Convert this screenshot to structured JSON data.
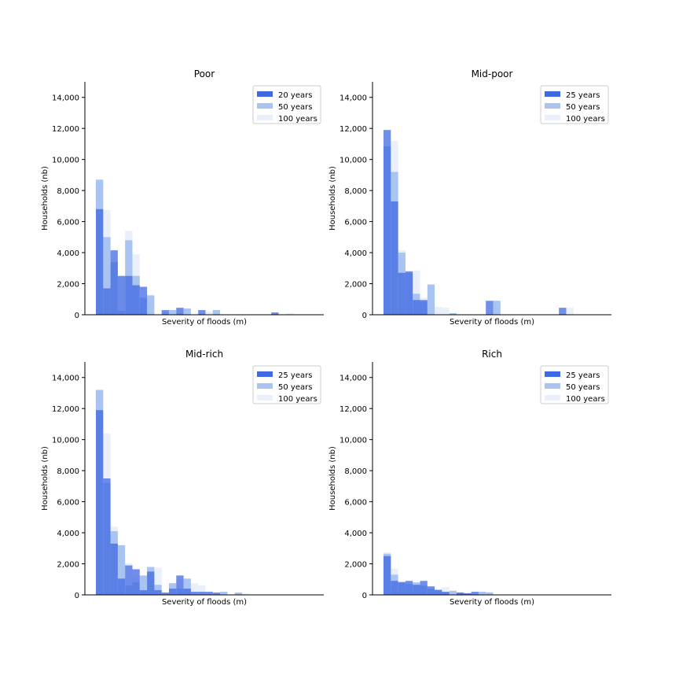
{
  "colors": {
    "s1": "#4169e1",
    "s2": "#a9c4f0",
    "s3": "#e6edf9"
  },
  "chart_data": [
    {
      "type": "bar",
      "title": "Poor",
      "xlabel": "Severity of floods (m)",
      "ylabel": "Households (nb)",
      "ylim": [
        0,
        15000
      ],
      "yticks": [
        "0",
        "2,000",
        "4,000",
        "6,000",
        "8,000",
        "10,000",
        "12,000",
        "14,000"
      ],
      "grid": false,
      "legend_position": "top-right",
      "series": [
        {
          "name": "20 years",
          "values": [
            6800,
            1700,
            4150,
            2500,
            2500,
            1900,
            1800,
            0,
            0,
            300,
            0,
            450,
            0,
            0,
            300,
            0,
            0,
            0,
            0,
            0,
            0,
            0,
            0,
            0,
            150,
            0,
            0,
            0,
            0,
            0
          ]
        },
        {
          "name": "50 years",
          "values": [
            8700,
            5000,
            3400,
            250,
            4800,
            2500,
            1100,
            1250,
            0,
            0,
            300,
            0,
            400,
            0,
            0,
            0,
            300,
            0,
            0,
            0,
            0,
            0,
            0,
            0,
            0,
            0,
            0,
            0,
            0,
            0
          ]
        },
        {
          "name": "100 years",
          "values": [
            6800,
            6750,
            1900,
            2500,
            5400,
            3900,
            300,
            1200,
            0,
            200,
            0,
            350,
            0,
            0,
            0,
            200,
            0,
            0,
            0,
            0,
            0,
            0,
            0,
            0,
            0,
            0,
            100,
            0,
            0,
            0
          ]
        }
      ]
    },
    {
      "type": "bar",
      "title": "Mid-poor",
      "xlabel": "Severity of floods (m)",
      "ylabel": "Households (nb)",
      "ylim": [
        0,
        15000
      ],
      "yticks": [
        "0",
        "2,000",
        "4,000",
        "6,000",
        "8,000",
        "10,000",
        "12,000",
        "14,000"
      ],
      "grid": false,
      "legend_position": "top-right",
      "series": [
        {
          "name": "25 years",
          "values": [
            11900,
            7300,
            2700,
            2800,
            950,
            950,
            0,
            0,
            0,
            0,
            0,
            0,
            0,
            0,
            900,
            0,
            0,
            0,
            0,
            0,
            0,
            0,
            0,
            0,
            450,
            0,
            0,
            0,
            0,
            0
          ]
        },
        {
          "name": "50 years",
          "values": [
            10850,
            9200,
            4000,
            2700,
            1350,
            850,
            1950,
            0,
            0,
            100,
            0,
            0,
            0,
            0,
            0,
            900,
            0,
            0,
            0,
            0,
            0,
            0,
            0,
            0,
            0,
            0,
            0,
            0,
            0,
            0
          ]
        },
        {
          "name": "100 years",
          "values": [
            7900,
            11200,
            4150,
            2400,
            2850,
            1100,
            1000,
            500,
            450,
            0,
            0,
            0,
            0,
            0,
            0,
            0,
            0,
            0,
            0,
            0,
            0,
            0,
            0,
            0,
            0,
            450,
            0,
            0,
            0,
            0
          ]
        }
      ]
    },
    {
      "type": "bar",
      "title": "Mid-rich",
      "xlabel": "Severity of floods (m)",
      "ylabel": "Households (nb)",
      "ylim": [
        0,
        15000
      ],
      "yticks": [
        "0",
        "2,000",
        "4,000",
        "6,000",
        "8,000",
        "10,000",
        "12,000",
        "14,000"
      ],
      "grid": false,
      "legend_position": "top-right",
      "series": [
        {
          "name": "25 years",
          "values": [
            11900,
            7500,
            3300,
            1050,
            1900,
            1650,
            300,
            1500,
            300,
            150,
            400,
            1250,
            400,
            200,
            200,
            200,
            150,
            0,
            0,
            0,
            0,
            0,
            0,
            0,
            0,
            0,
            0,
            0,
            0,
            0
          ]
        },
        {
          "name": "50 years",
          "values": [
            13200,
            7200,
            4100,
            3200,
            600,
            800,
            1250,
            1800,
            650,
            0,
            750,
            400,
            1050,
            0,
            0,
            0,
            0,
            200,
            0,
            150,
            0,
            0,
            0,
            0,
            0,
            0,
            0,
            0,
            0,
            0
          ]
        },
        {
          "name": "100 years",
          "values": [
            10500,
            10400,
            4400,
            1000,
            2050,
            1200,
            1200,
            1750,
            1750,
            150,
            300,
            1000,
            0,
            750,
            600,
            0,
            0,
            0,
            0,
            0,
            100,
            0,
            0,
            0,
            0,
            0,
            0,
            0,
            0,
            0
          ]
        }
      ]
    },
    {
      "type": "bar",
      "title": "Rich",
      "xlabel": "Severity of floods (m)",
      "ylabel": "Households (nb)",
      "ylim": [
        0,
        15000
      ],
      "yticks": [
        "0",
        "2,000",
        "4,000",
        "6,000",
        "8,000",
        "10,000",
        "12,000",
        "14,000"
      ],
      "grid": false,
      "legend_position": "top-right",
      "series": [
        {
          "name": "25 years",
          "values": [
            2500,
            900,
            800,
            900,
            650,
            900,
            550,
            300,
            200,
            0,
            150,
            100,
            200,
            0,
            0,
            0,
            0,
            0,
            0,
            0,
            0,
            0,
            0,
            0,
            0,
            0,
            0,
            0,
            0,
            0
          ]
        },
        {
          "name": "50 years",
          "values": [
            2650,
            1300,
            850,
            700,
            800,
            600,
            400,
            350,
            150,
            250,
            150,
            100,
            0,
            200,
            150,
            0,
            0,
            0,
            0,
            0,
            0,
            0,
            0,
            0,
            0,
            0,
            0,
            0,
            0,
            0
          ]
        },
        {
          "name": "100 years",
          "values": [
            2750,
            1700,
            800,
            600,
            800,
            350,
            250,
            350,
            500,
            300,
            150,
            150,
            0,
            150,
            200,
            0,
            0,
            0,
            0,
            0,
            0,
            0,
            0,
            0,
            0,
            0,
            0,
            0,
            0,
            0
          ]
        }
      ]
    }
  ]
}
